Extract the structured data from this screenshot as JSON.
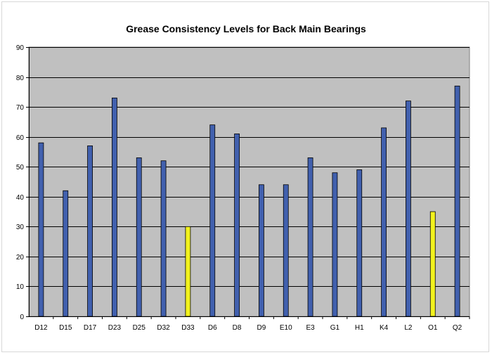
{
  "chart_data": {
    "type": "bar",
    "title": "Grease Consistency Levels for Back Main Bearings",
    "xlabel": "",
    "ylabel": "",
    "categories": [
      "D12",
      "D15",
      "D17",
      "D23",
      "D25",
      "D32",
      "D33",
      "D6",
      "D8",
      "D9",
      "E10",
      "E3",
      "G1",
      "H1",
      "K4",
      "L2",
      "O1",
      "Q2"
    ],
    "values": [
      58,
      42,
      57,
      73,
      53,
      52,
      30,
      64,
      61,
      44,
      44,
      53,
      48,
      49,
      63,
      72,
      35,
      77
    ],
    "highlighted": [
      "D33",
      "O1"
    ],
    "ylim": [
      0,
      90
    ],
    "yticks": [
      0,
      10,
      20,
      30,
      40,
      50,
      60,
      70,
      80,
      90
    ],
    "grid": true,
    "legend": "none",
    "colors": {
      "bar": "#4160AE",
      "bar_highlight": "#F2F21E",
      "plot_background": "#C0C0C0",
      "gridline": "#000000"
    }
  }
}
